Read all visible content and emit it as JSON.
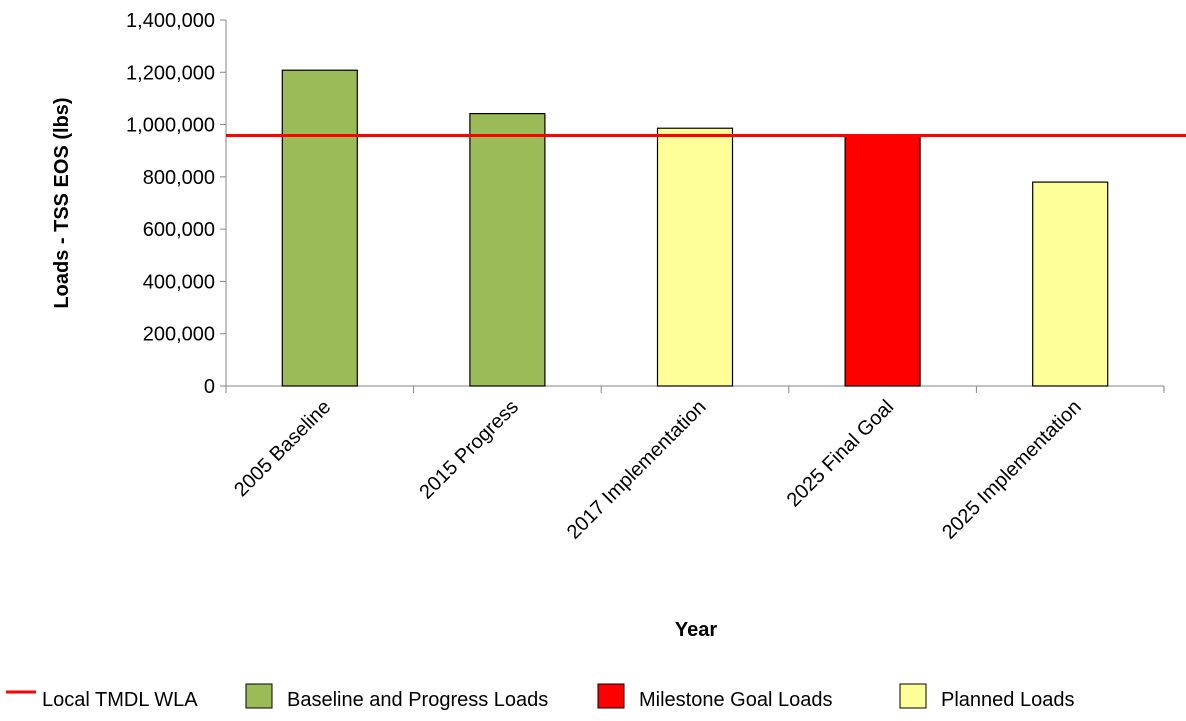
{
  "chart_data": {
    "type": "bar",
    "title": "",
    "xlabel": "Year",
    "ylabel": "Loads - TSS EOS (lbs)",
    "ylim": [
      0,
      1400000
    ],
    "yticks": [
      0,
      200000,
      400000,
      600000,
      800000,
      1000000,
      1200000,
      1400000
    ],
    "ytick_labels": [
      "0",
      "200,000",
      "400,000",
      "600,000",
      "800,000",
      "1,000,000",
      "1,200,000",
      "1,400,000"
    ],
    "categories": [
      "2005 Baseline",
      "2015 Progress",
      "2017 Implementation",
      "2025 Final Goal",
      "2025 Implementation"
    ],
    "values": [
      1208000,
      1042000,
      986000,
      958000,
      780000
    ],
    "bar_groups": [
      "Baseline and Progress Loads",
      "Baseline and Progress Loads",
      "Planned Loads",
      "Milestone Goal Loads",
      "Planned Loads"
    ],
    "reference_line": {
      "name": "Local TMDL WLA",
      "value": 958000,
      "color": "#ff0000"
    },
    "legend_position": "bottom",
    "legend": [
      {
        "label": "Local TMDL WLA",
        "kind": "line",
        "color": "#ff0000"
      },
      {
        "label": "Baseline and Progress Loads",
        "kind": "box",
        "color": "#9bbb59"
      },
      {
        "label": "Milestone Goal Loads",
        "kind": "box",
        "color": "#ff0000"
      },
      {
        "label": "Planned Loads",
        "kind": "box",
        "color": "#ffff99"
      }
    ],
    "colors": {
      "Baseline and Progress Loads": "#9bbb59",
      "Milestone Goal Loads": "#ff0000",
      "Planned Loads": "#ffff99"
    },
    "grid": false
  }
}
